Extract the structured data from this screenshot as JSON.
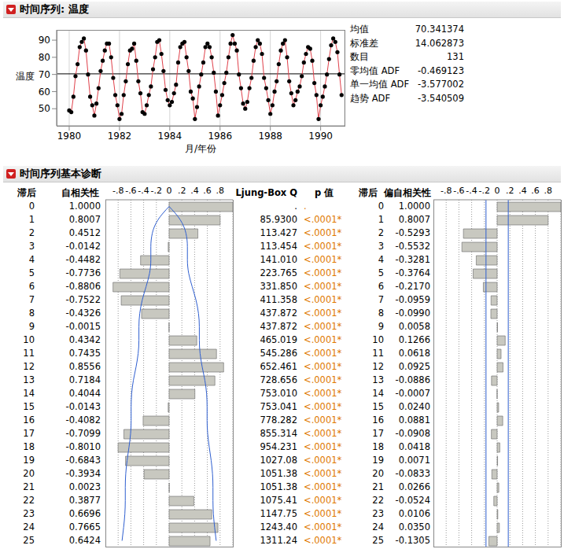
{
  "chart_data": [
    {
      "type": "line",
      "title": "时间序列: 温度",
      "xlabel": "月/年份",
      "ylabel": "温度",
      "color": "#e0404a",
      "marker": "circle",
      "grid": true,
      "x": [
        1980,
        1980.083,
        1980.167,
        1980.25,
        1980.333,
        1980.417,
        1980.5,
        1980.583,
        1980.667,
        1980.75,
        1980.833,
        1980.917,
        1981,
        1981.083,
        1981.167,
        1981.25,
        1981.333,
        1981.417,
        1981.5,
        1981.583,
        1981.667,
        1981.75,
        1981.833,
        1981.917,
        1982,
        1982.083,
        1982.167,
        1982.25,
        1982.333,
        1982.417,
        1982.5,
        1982.583,
        1982.667,
        1982.75,
        1982.833,
        1982.917,
        1983,
        1983.083,
        1983.167,
        1983.25,
        1983.333,
        1983.417,
        1983.5,
        1983.583,
        1983.667,
        1983.75,
        1983.833,
        1983.917,
        1984,
        1984.083,
        1984.167,
        1984.25,
        1984.333,
        1984.417,
        1984.5,
        1984.583,
        1984.667,
        1984.75,
        1984.833,
        1984.917,
        1985,
        1985.083,
        1985.167,
        1985.25,
        1985.333,
        1985.417,
        1985.5,
        1985.583,
        1985.667,
        1985.75,
        1985.833,
        1985.917,
        1986,
        1986.083,
        1986.167,
        1986.25,
        1986.333,
        1986.417,
        1986.5,
        1986.583,
        1986.667,
        1986.75,
        1986.833,
        1986.917,
        1987,
        1987.083,
        1987.167,
        1987.25,
        1987.333,
        1987.417,
        1987.5,
        1987.583,
        1987.667,
        1987.75,
        1987.833,
        1987.917,
        1988,
        1988.083,
        1988.167,
        1988.25,
        1988.333,
        1988.417,
        1988.5,
        1988.583,
        1988.667,
        1988.75,
        1988.833,
        1988.917,
        1989,
        1989.083,
        1989.167,
        1989.25,
        1989.333,
        1989.417,
        1989.5,
        1989.583,
        1989.667,
        1989.75,
        1989.833,
        1989.917,
        1990,
        1990.083,
        1990.167,
        1990.25,
        1990.333,
        1990.417,
        1990.5,
        1990.583,
        1990.667,
        1990.75,
        1990.833
      ],
      "values": [
        49,
        48,
        57,
        69,
        76,
        86,
        89,
        91,
        84,
        70,
        57,
        52,
        46,
        53,
        62,
        72,
        78,
        84,
        88,
        88,
        80,
        68,
        58,
        52,
        44,
        47,
        58,
        66,
        76,
        84,
        85,
        88,
        78,
        66,
        59,
        48,
        47,
        52,
        58,
        63,
        73,
        80,
        89,
        90,
        82,
        72,
        61,
        55,
        52,
        54,
        59,
        64,
        77,
        86,
        88,
        89,
        80,
        72,
        60,
        56,
        44,
        51,
        63,
        70,
        77,
        86,
        88,
        86,
        80,
        71,
        60,
        46,
        52,
        58,
        65,
        71,
        80,
        88,
        93,
        88,
        84,
        70,
        62,
        53,
        50,
        54,
        62,
        68,
        78,
        86,
        90,
        88,
        82,
        68,
        62,
        55,
        47,
        52,
        60,
        66,
        76,
        84,
        88,
        90,
        80,
        66,
        59,
        52,
        55,
        60,
        63,
        69,
        77,
        82,
        86,
        85,
        78,
        65,
        58,
        44,
        52,
        57,
        63,
        70,
        79,
        87,
        91,
        89,
        83,
        70,
        58
      ],
      "xlim": [
        1979.5,
        1990.95
      ],
      "xticks": [
        1980,
        1982,
        1984,
        1986,
        1988,
        1990
      ],
      "ylim": [
        40,
        96
      ],
      "yticks": [
        50,
        60,
        70,
        80,
        90
      ],
      "stats": [
        {
          "label": "均值",
          "value": 70.341374
        },
        {
          "label": "标准差",
          "value": 14.062873
        },
        {
          "label": "数目",
          "value": 131
        },
        {
          "label": "零均值 ADF",
          "value": -0.469123
        },
        {
          "label": "单一均值 ADF",
          "value": -3.577002
        },
        {
          "label": "趋势 ADF",
          "value": -3.540509
        }
      ]
    },
    {
      "type": "bar",
      "orientation": "horizontal",
      "title": "时间序列基本诊断",
      "category_label": "滞后",
      "value_label": "自相关性",
      "color": "#c8c8c0",
      "grid": true,
      "categories": [
        0,
        1,
        2,
        3,
        4,
        5,
        6,
        7,
        8,
        9,
        10,
        11,
        12,
        13,
        14,
        15,
        16,
        17,
        18,
        19,
        20,
        21,
        22,
        23,
        24,
        25
      ],
      "values": [
        1.0,
        0.8007,
        0.4512,
        -0.0142,
        -0.4482,
        -0.7736,
        -0.8806,
        -0.7522,
        -0.4326,
        -0.0015,
        0.4342,
        0.7435,
        0.8556,
        0.7184,
        0.4044,
        -0.0143,
        -0.4082,
        -0.7099,
        -0.801,
        -0.6843,
        -0.3934,
        0.0023,
        0.3877,
        0.6696,
        0.7665,
        0.6424
      ],
      "value_labels": [
        "1.0000",
        "0.8007",
        "0.4512",
        "-0.0142",
        "-0.4482",
        "-0.7736",
        "-0.8806",
        "-0.7522",
        "-0.4326",
        "-0.0015",
        "0.4342",
        "0.7435",
        "0.8556",
        "0.7184",
        "0.4044",
        "-0.0143",
        "-0.4082",
        "-0.7099",
        "-0.8010",
        "-0.6843",
        "-0.3934",
        "0.0023",
        "0.3877",
        "0.6696",
        "0.7665",
        "0.6424"
      ],
      "confidence_upper": [
        0,
        0.175,
        0.264,
        0.287,
        0.287,
        0.307,
        0.362,
        0.422,
        0.461,
        0.474,
        0.474,
        0.486,
        0.519,
        0.561,
        0.588,
        0.596,
        0.596,
        0.605,
        0.63,
        0.66,
        0.681,
        0.688,
        0.688,
        0.695,
        0.714,
        0.739
      ],
      "confidence_lower": [
        0,
        -0.175,
        -0.264,
        -0.287,
        -0.287,
        -0.307,
        -0.362,
        -0.422,
        -0.461,
        -0.474,
        -0.474,
        -0.486,
        -0.519,
        -0.561,
        -0.588,
        -0.596,
        -0.596,
        -0.605,
        -0.63,
        -0.66,
        -0.681,
        -0.688,
        -0.688,
        -0.695,
        -0.714,
        -0.739
      ],
      "xlim": [
        -1,
        1
      ],
      "xticks": [
        {
          "value": -0.8,
          "label": "-.8"
        },
        {
          "value": -0.6,
          "label": "-.6"
        },
        {
          "value": -0.4,
          "label": "-.4"
        },
        {
          "value": -0.2,
          "label": "-.2"
        },
        0,
        {
          "value": 0.2,
          "label": ".2"
        },
        {
          "value": 0.4,
          "label": ".4"
        },
        {
          "value": 0.6,
          "label": ".6"
        },
        {
          "value": 0.8,
          "label": ".8"
        }
      ],
      "ljung_box": {
        "columns": [
          "Ljung-Box Q",
          "p 值"
        ],
        "q": [
          ".",
          "85.9300",
          "113.427",
          "113.454",
          "141.010",
          "223.765",
          "331.850",
          "411.358",
          "437.872",
          "437.872",
          "465.019",
          "545.286",
          "652.461",
          "728.656",
          "753.010",
          "753.041",
          "778.282",
          "855.314",
          "954.231",
          "1027.08",
          "1051.38",
          "1051.38",
          "1075.41",
          "1147.75",
          "1243.40",
          "1311.24"
        ],
        "p": [
          ".",
          "<.0001*",
          "<.0001*",
          "<.0001*",
          "<.0001*",
          "<.0001*",
          "<.0001*",
          "<.0001*",
          "<.0001*",
          "<.0001*",
          "<.0001*",
          "<.0001*",
          "<.0001*",
          "<.0001*",
          "<.0001*",
          "<.0001*",
          "<.0001*",
          "<.0001*",
          "<.0001*",
          "<.0001*",
          "<.0001*",
          "<.0001*",
          "<.0001*",
          "<.0001*",
          "<.0001*",
          "<.0001*"
        ]
      }
    },
    {
      "type": "bar",
      "orientation": "horizontal",
      "category_label": "滞后",
      "value_label": "偏自相关性",
      "color": "#c8c8c0",
      "grid": true,
      "categories": [
        0,
        1,
        2,
        3,
        4,
        5,
        6,
        7,
        8,
        9,
        10,
        11,
        12,
        13,
        14,
        15,
        16,
        17,
        18,
        19,
        20,
        21,
        22,
        23,
        24,
        25
      ],
      "values": [
        1.0,
        0.8007,
        -0.5293,
        -0.5532,
        -0.3281,
        -0.3764,
        -0.217,
        -0.0959,
        -0.099,
        0.0058,
        0.1266,
        0.0618,
        0.0925,
        -0.0886,
        -0.0007,
        0.024,
        0.0881,
        -0.0908,
        0.0418,
        0.0071,
        -0.0833,
        0.0266,
        -0.0524,
        0.0106,
        0.035,
        -0.1305
      ],
      "value_labels": [
        "1.0000",
        "0.8007",
        "-0.5293",
        "-0.5532",
        "-0.3281",
        "-0.3764",
        "-0.2170",
        "-0.0959",
        "-0.0990",
        "0.0058",
        "0.1266",
        "0.0618",
        "0.0925",
        "-0.0886",
        "-0.0007",
        "0.0240",
        "0.0881",
        "-0.0908",
        "0.0418",
        "0.0071",
        "-0.0833",
        "0.0266",
        "-0.0524",
        "0.0106",
        "0.0350",
        "-0.1305"
      ],
      "confidence_limits": [
        -0.1747,
        0.1747
      ],
      "xlim": [
        -1,
        1
      ],
      "xticks": [
        {
          "value": -0.8,
          "label": "-.8"
        },
        {
          "value": -0.6,
          "label": "-.6"
        },
        {
          "value": -0.4,
          "label": "-.4"
        },
        {
          "value": -0.2,
          "label": "-.2"
        },
        0,
        {
          "value": 0.2,
          "label": ".2"
        },
        {
          "value": 0.4,
          "label": ".4"
        },
        {
          "value": 0.6,
          "label": ".6"
        },
        {
          "value": 0.8,
          "label": ".8"
        }
      ]
    }
  ]
}
